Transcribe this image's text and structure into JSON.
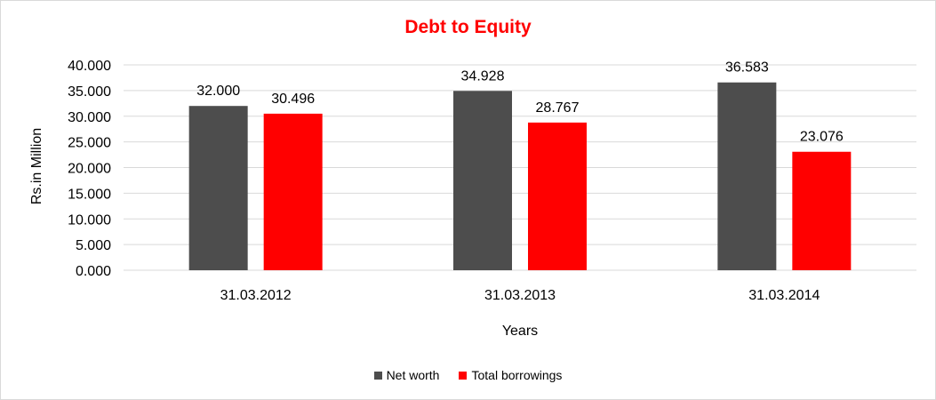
{
  "colors": {
    "title": "#ff0000",
    "net_worth": "#4d4d4d",
    "total_borrowings": "#ff0000",
    "grid": "#d9d9d9"
  },
  "chart_data": {
    "type": "bar",
    "title": "Debt to Equity",
    "xlabel": "Years",
    "ylabel": "Rs.in Million",
    "categories": [
      "31.03.2012",
      "31.03.2013",
      "31.03.2014"
    ],
    "series": [
      {
        "name": "Net worth",
        "values": [
          32.0,
          34.928,
          36.583
        ],
        "labels": [
          "32.000",
          "34.928",
          "36.583"
        ]
      },
      {
        "name": "Total borrowings",
        "values": [
          30.496,
          28.767,
          23.076
        ],
        "labels": [
          "30.496",
          "28.767",
          "23.076"
        ]
      }
    ],
    "ylim": [
      0,
      40
    ],
    "yticks": [
      "0.000",
      "5.000",
      "10.000",
      "15.000",
      "20.000",
      "25.000",
      "30.000",
      "35.000",
      "40.000"
    ],
    "grid": true,
    "legend_position": "bottom"
  }
}
